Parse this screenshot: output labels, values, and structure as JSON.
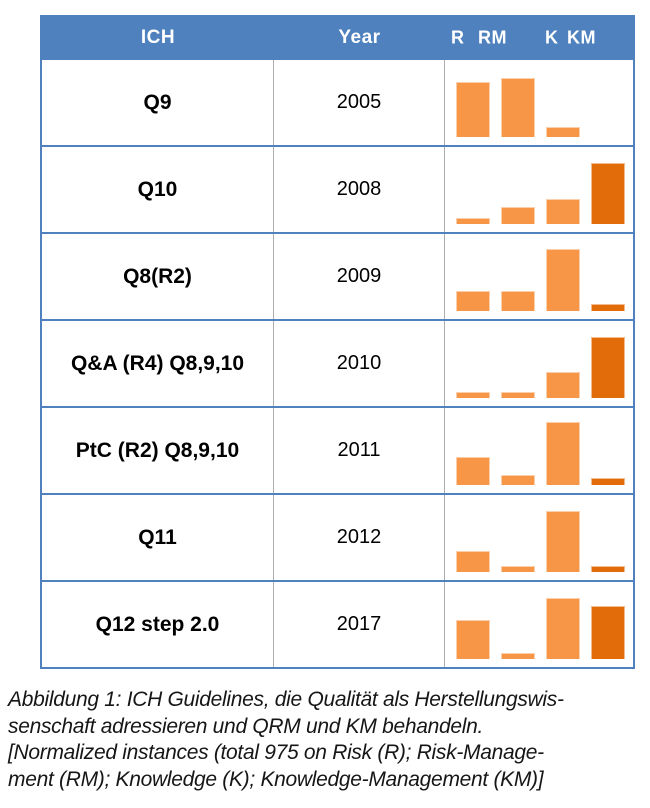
{
  "colors": {
    "header_blue": "#4e81bd",
    "row_line_blue": "#4e81bd",
    "column_divider_gray": "#adadad",
    "bar_light_orange": "#f79646",
    "bar_dark_orange": "#e36c0a"
  },
  "table": {
    "headers": {
      "ich": "ICH",
      "year": "Year",
      "metrics": [
        "R",
        "RM",
        "K",
        "KM"
      ]
    },
    "rows": [
      {
        "ich": "Q9",
        "year": "2005",
        "bars": {
          "R": 87,
          "RM": 94,
          "K": 16,
          "KM": 0
        }
      },
      {
        "ich": "Q10",
        "year": "2008",
        "bars": {
          "R": 10,
          "RM": 27,
          "K": 40,
          "KM": 97
        }
      },
      {
        "ich": "Q8(R2)",
        "year": "2009",
        "bars": {
          "R": 32,
          "RM": 32,
          "K": 98,
          "KM": 11
        }
      },
      {
        "ich": "Q&A (R4) Q8,9,10",
        "year": "2010",
        "bars": {
          "R": 10,
          "RM": 10,
          "K": 41,
          "KM": 97
        }
      },
      {
        "ich": "PtC (R2) Q8,9,10",
        "year": "2011",
        "bars": {
          "R": 44,
          "RM": 16,
          "K": 100,
          "KM": 11
        }
      },
      {
        "ich": "Q11",
        "year": "2012",
        "bars": {
          "R": 33,
          "RM": 10,
          "K": 97,
          "KM": 10
        }
      },
      {
        "ich": "Q12 step 2.0",
        "year": "2017",
        "bars": {
          "R": 62,
          "RM": 10,
          "K": 97,
          "KM": 84
        }
      }
    ]
  },
  "caption": {
    "lines": [
      "Abbildung 1: ICH Guidelines, die Qualität als Herstellungswis-",
      "senschaft adressieren und QRM und KM behandeln.",
      "[Normalized instances (total 975 on Risk (R); Risk-Manage-",
      "ment (RM); Knowledge (K); Knowledge-Management (KM)]"
    ]
  },
  "chart_data": {
    "type": "bar",
    "title": "ICH Guidelines – normalized instances of Risk (R), Risk-Management (RM), Knowledge (K), Knowledge-Management (KM); total 975",
    "categories": [
      "R",
      "RM",
      "K",
      "KM"
    ],
    "series": [
      {
        "name": "Q9 (2005)",
        "values": [
          87,
          94,
          16,
          0
        ]
      },
      {
        "name": "Q10 (2008)",
        "values": [
          10,
          27,
          40,
          97
        ]
      },
      {
        "name": "Q8(R2) (2009)",
        "values": [
          32,
          32,
          98,
          11
        ]
      },
      {
        "name": "Q&A (R4) Q8,9,10 (2010)",
        "values": [
          10,
          10,
          41,
          97
        ]
      },
      {
        "name": "PtC (R2) Q8,9,10 (2011)",
        "values": [
          44,
          16,
          100,
          11
        ]
      },
      {
        "name": "Q11 (2012)",
        "values": [
          33,
          10,
          97,
          10
        ]
      },
      {
        "name": "Q12 step 2.0 (2017)",
        "values": [
          62,
          10,
          97,
          84
        ]
      }
    ],
    "ylim": [
      0,
      100
    ],
    "grid": false,
    "legend": "none",
    "note": "Values are relative bar heights in % of the tallest bar; R/RM/K bars light orange, KM bars dark orange; one mini bar chart per table row."
  }
}
